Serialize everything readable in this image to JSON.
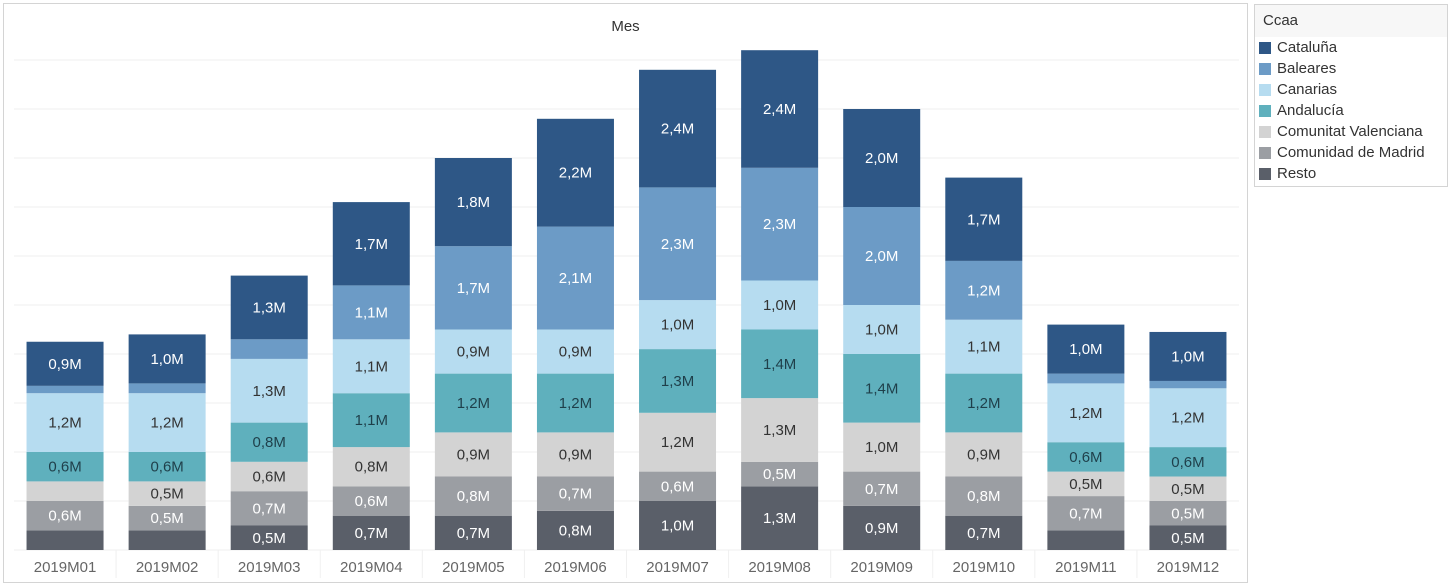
{
  "chart_data": {
    "type": "bar",
    "stacked": true,
    "title": "Mes",
    "legend_title": "Ccaa",
    "legend_position": "right",
    "grid": true,
    "ylim": [
      0,
      10.2
    ],
    "categories": [
      "2019M01",
      "2019M02",
      "2019M03",
      "2019M04",
      "2019M05",
      "2019M06",
      "2019M07",
      "2019M08",
      "2019M09",
      "2019M10",
      "2019M11",
      "2019M12"
    ],
    "series": [
      {
        "name": "Resto",
        "color": "#5a5f69",
        "values": [
          0.4,
          0.4,
          0.5,
          0.7,
          0.7,
          0.8,
          1.0,
          1.3,
          0.9,
          0.7,
          0.4,
          0.5
        ],
        "labels": [
          "",
          "",
          "0,5M",
          "0,7M",
          "0,7M",
          "0,8M",
          "1,0M",
          "1,3M",
          "0,9M",
          "0,7M",
          "",
          "0,5M"
        ]
      },
      {
        "name": "Comunidad de Madrid",
        "color": "#9b9ea3",
        "values": [
          0.6,
          0.5,
          0.7,
          0.6,
          0.8,
          0.7,
          0.6,
          0.5,
          0.7,
          0.8,
          0.7,
          0.5
        ],
        "labels": [
          "0,6M",
          "0,5M",
          "0,7M",
          "0,6M",
          "0,8M",
          "0,7M",
          "0,6M",
          "0,5M",
          "0,7M",
          "0,8M",
          "0,7M",
          "0,5M"
        ]
      },
      {
        "name": "Comunitat Valenciana",
        "color": "#d3d3d3",
        "values": [
          0.4,
          0.5,
          0.6,
          0.8,
          0.9,
          0.9,
          1.2,
          1.3,
          1.0,
          0.9,
          0.5,
          0.5
        ],
        "labels": [
          "",
          "0,5M",
          "0,6M",
          "0,8M",
          "0,9M",
          "0,9M",
          "1,2M",
          "1,3M",
          "1,0M",
          "0,9M",
          "0,5M",
          "0,5M"
        ]
      },
      {
        "name": "Andalucía",
        "color": "#5fb0bd",
        "values": [
          0.6,
          0.6,
          0.8,
          1.1,
          1.2,
          1.2,
          1.3,
          1.4,
          1.4,
          1.2,
          0.6,
          0.6
        ],
        "labels": [
          "0,6M",
          "0,6M",
          "0,8M",
          "1,1M",
          "1,2M",
          "1,2M",
          "1,3M",
          "1,4M",
          "1,4M",
          "1,2M",
          "0,6M",
          "0,6M"
        ]
      },
      {
        "name": "Canarias",
        "color": "#b6dcf0",
        "values": [
          1.2,
          1.2,
          1.3,
          1.1,
          0.9,
          0.9,
          1.0,
          1.0,
          1.0,
          1.1,
          1.2,
          1.2
        ],
        "labels": [
          "1,2M",
          "1,2M",
          "1,3M",
          "1,1M",
          "0,9M",
          "0,9M",
          "1,0M",
          "1,0M",
          "1,0M",
          "1,1M",
          "1,2M",
          "1,2M"
        ]
      },
      {
        "name": "Baleares",
        "color": "#6c9bc6",
        "values": [
          0.15,
          0.2,
          0.4,
          1.1,
          1.7,
          2.1,
          2.3,
          2.3,
          2.0,
          1.2,
          0.2,
          0.15
        ],
        "labels": [
          "",
          "",
          "",
          "1,1M",
          "1,7M",
          "2,1M",
          "2,3M",
          "2,3M",
          "2,0M",
          "1,2M",
          "",
          ""
        ]
      },
      {
        "name": "Cataluña",
        "color": "#2e5786",
        "values": [
          0.9,
          1.0,
          1.3,
          1.7,
          1.8,
          2.2,
          2.4,
          2.4,
          2.0,
          1.7,
          1.0,
          1.0
        ],
        "labels": [
          "0,9M",
          "1,0M",
          "1,3M",
          "1,7M",
          "1,8M",
          "2,2M",
          "2,4M",
          "2,4M",
          "2,0M",
          "1,7M",
          "1,0M",
          "1,0M"
        ]
      }
    ],
    "legend_order": [
      "Cataluña",
      "Baleares",
      "Canarias",
      "Andalucía",
      "Comunitat Valenciana",
      "Comunidad de Madrid",
      "Resto"
    ]
  }
}
